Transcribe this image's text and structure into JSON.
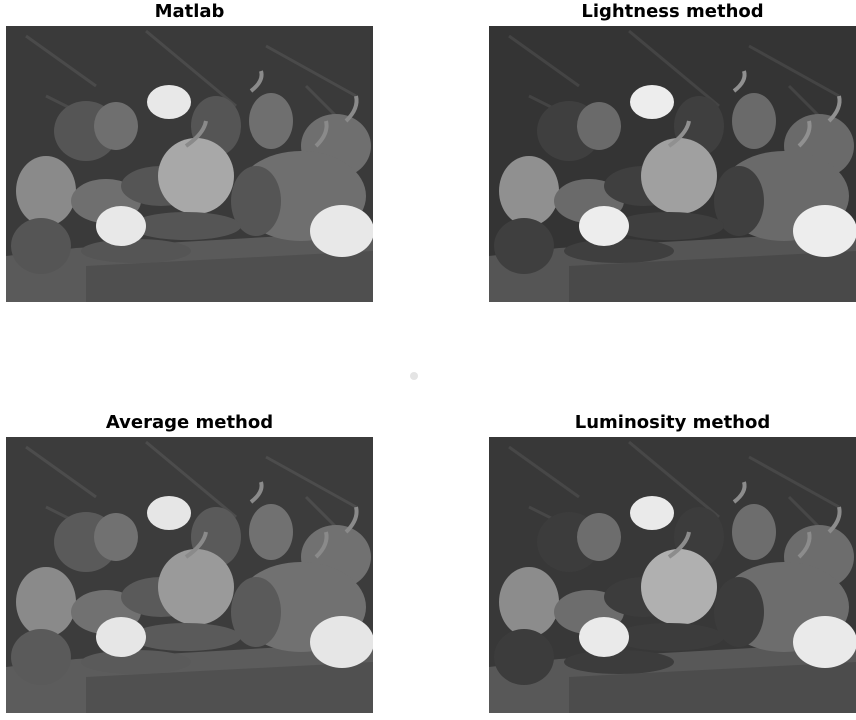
{
  "panels": [
    {
      "id": "p1",
      "title": "Matlab",
      "tone": "matlab"
    },
    {
      "id": "p2",
      "title": "Lightness method",
      "tone": "lightness"
    },
    {
      "id": "p3",
      "title": "Average method",
      "tone": "average"
    },
    {
      "id": "p4",
      "title": "Luminosity method",
      "tone": "luminosity"
    }
  ]
}
